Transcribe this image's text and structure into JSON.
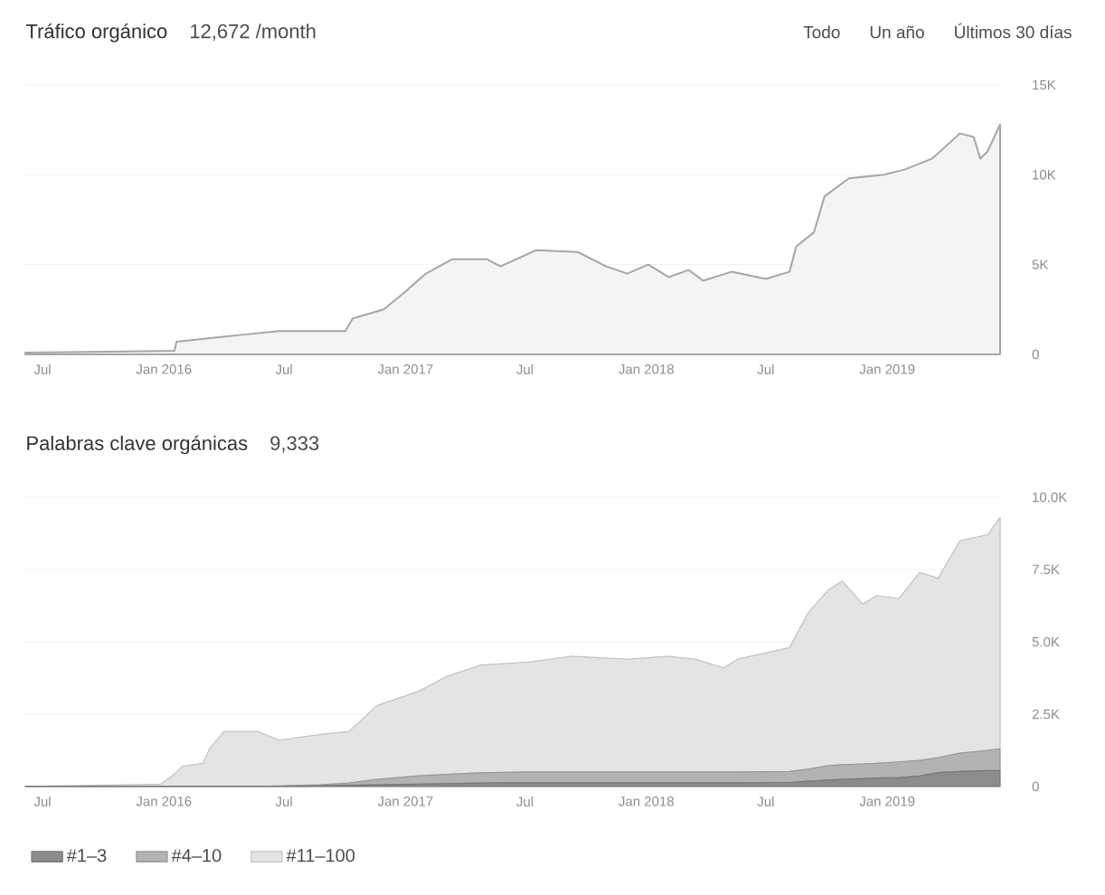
{
  "chart_data": [
    {
      "type": "area",
      "title": "Tráfico orgánico",
      "subtitle": "12,672 /month",
      "annotations": [
        "Todo",
        "Un año",
        "Últimos 30 días"
      ],
      "x": [
        "2015-06-05",
        "2015-10-15",
        "2016-01-17",
        "2016-01-20",
        "2016-05-01",
        "2016-06-24",
        "2016-10-02",
        "2016-10-13",
        "2016-11-29",
        "2017-01-01",
        "2017-02-01",
        "2017-03-13",
        "2017-05-04",
        "2017-05-25",
        "2017-07-18",
        "2017-09-19",
        "2017-11-01",
        "2017-12-03",
        "2018-01-04",
        "2018-02-04",
        "2018-03-06",
        "2018-03-28",
        "2018-05-10",
        "2018-07-01",
        "2018-08-06",
        "2018-08-16",
        "2018-09-12",
        "2018-09-28",
        "2018-11-04",
        "2018-12-27",
        "2019-01-28",
        "2019-03-10",
        "2019-04-21",
        "2019-05-12",
        "2019-05-22",
        "2019-06-02",
        "2019-06-21"
      ],
      "series": [
        {
          "color": "#a6a6a6",
          "values": [
            100,
            150,
            200,
            700,
            1100,
            1300,
            1300,
            2000,
            2500,
            3500,
            4500,
            5300,
            5300,
            4900,
            5800,
            5700,
            4900,
            4500,
            5000,
            4300,
            4700,
            4100,
            4600,
            4200,
            4600,
            6000,
            6800,
            8800,
            9800,
            10000,
            10300,
            10900,
            12300,
            12100,
            10900,
            11300,
            12800
          ]
        }
      ],
      "xlim": [
        "2015-06-05",
        "2019-06-21"
      ],
      "ylim": [
        0,
        15000
      ],
      "xticks": [
        {
          "value": "2015-07-01",
          "label": "Jul"
        },
        {
          "value": "2016-01-01",
          "label": "Jan 2016"
        },
        {
          "value": "2016-07-01",
          "label": "Jul"
        },
        {
          "value": "2017-01-01",
          "label": "Jan 2017"
        },
        {
          "value": "2017-07-01",
          "label": "Jul"
        },
        {
          "value": "2018-01-01",
          "label": "Jan 2018"
        },
        {
          "value": "2018-07-01",
          "label": "Jul"
        },
        {
          "value": "2019-01-01",
          "label": "Jan 2019"
        }
      ],
      "yticks": [
        0,
        {
          "value": 5000,
          "label": "5K"
        },
        {
          "value": 10000,
          "label": "10K"
        },
        {
          "value": 15000,
          "label": "15K"
        }
      ],
      "grid": "y"
    },
    {
      "type": "area",
      "title": "Palabras clave orgánicas",
      "subtitle": "9,333",
      "stacked": true,
      "legend": "bottom left",
      "x": [
        "2015-06-05",
        "2015-12-27",
        "2016-01-18",
        "2016-01-29",
        "2016-02-29",
        "2016-03-10",
        "2016-04-01",
        "2016-05-22",
        "2016-06-24",
        "2016-08-25",
        "2016-10-07",
        "2016-11-19",
        "2017-01-22",
        "2017-03-04",
        "2017-04-25",
        "2017-07-07",
        "2017-09-09",
        "2017-12-03",
        "2018-02-04",
        "2018-03-16",
        "2018-04-28",
        "2018-05-19",
        "2018-08-06",
        "2018-09-03",
        "2018-10-04",
        "2018-10-25",
        "2018-11-25",
        "2018-12-16",
        "2019-01-19",
        "2019-02-19",
        "2019-03-19",
        "2019-04-21",
        "2019-06-02",
        "2019-06-21"
      ],
      "series": [
        {
          "name": "#1–3",
          "color": "#8c8c8c",
          "values": [
            0,
            0,
            0,
            0,
            0,
            0,
            0,
            0,
            0,
            20,
            40,
            60,
            80,
            100,
            120,
            130,
            130,
            130,
            130,
            130,
            130,
            130,
            140,
            180,
            220,
            250,
            270,
            290,
            310,
            360,
            480,
            520,
            550,
            550
          ]
        },
        {
          "name": "#4–10",
          "color": "#b3b3b3",
          "values": [
            0,
            0,
            0,
            0,
            0,
            0,
            0,
            0,
            20,
            40,
            80,
            190,
            290,
            320,
            350,
            370,
            370,
            370,
            370,
            370,
            370,
            370,
            380,
            420,
            500,
            500,
            510,
            510,
            540,
            540,
            520,
            630,
            700,
            750
          ]
        },
        {
          "name": "#11–100",
          "color": "#e4e4e4",
          "values": [
            0,
            80,
            450,
            700,
            800,
            1300,
            1900,
            1900,
            1580,
            1740,
            1780,
            2550,
            2930,
            3380,
            3730,
            3800,
            4000,
            3900,
            4000,
            3900,
            3600,
            3900,
            4280,
            5400,
            6080,
            6350,
            5520,
            5800,
            5650,
            6500,
            6200,
            7350,
            7450,
            8000
          ]
        }
      ],
      "xlim": [
        "2015-06-05",
        "2019-06-21"
      ],
      "ylim": [
        0,
        10000
      ],
      "xticks": [
        {
          "value": "2015-07-01",
          "label": "Jul"
        },
        {
          "value": "2016-01-01",
          "label": "Jan 2016"
        },
        {
          "value": "2016-07-01",
          "label": "Jul"
        },
        {
          "value": "2017-01-01",
          "label": "Jan 2017"
        },
        {
          "value": "2017-07-01",
          "label": "Jul"
        },
        {
          "value": "2018-01-01",
          "label": "Jan 2018"
        },
        {
          "value": "2018-07-01",
          "label": "Jul"
        },
        {
          "value": "2019-01-01",
          "label": "Jan 2019"
        }
      ],
      "yticks": [
        0,
        {
          "value": 2500,
          "label": "2.5K"
        },
        {
          "value": 5000,
          "label": "5.0K"
        },
        {
          "value": 7500,
          "label": "7.5K"
        },
        {
          "value": 10000,
          "label": "10.0K"
        }
      ],
      "grid": "y"
    }
  ]
}
